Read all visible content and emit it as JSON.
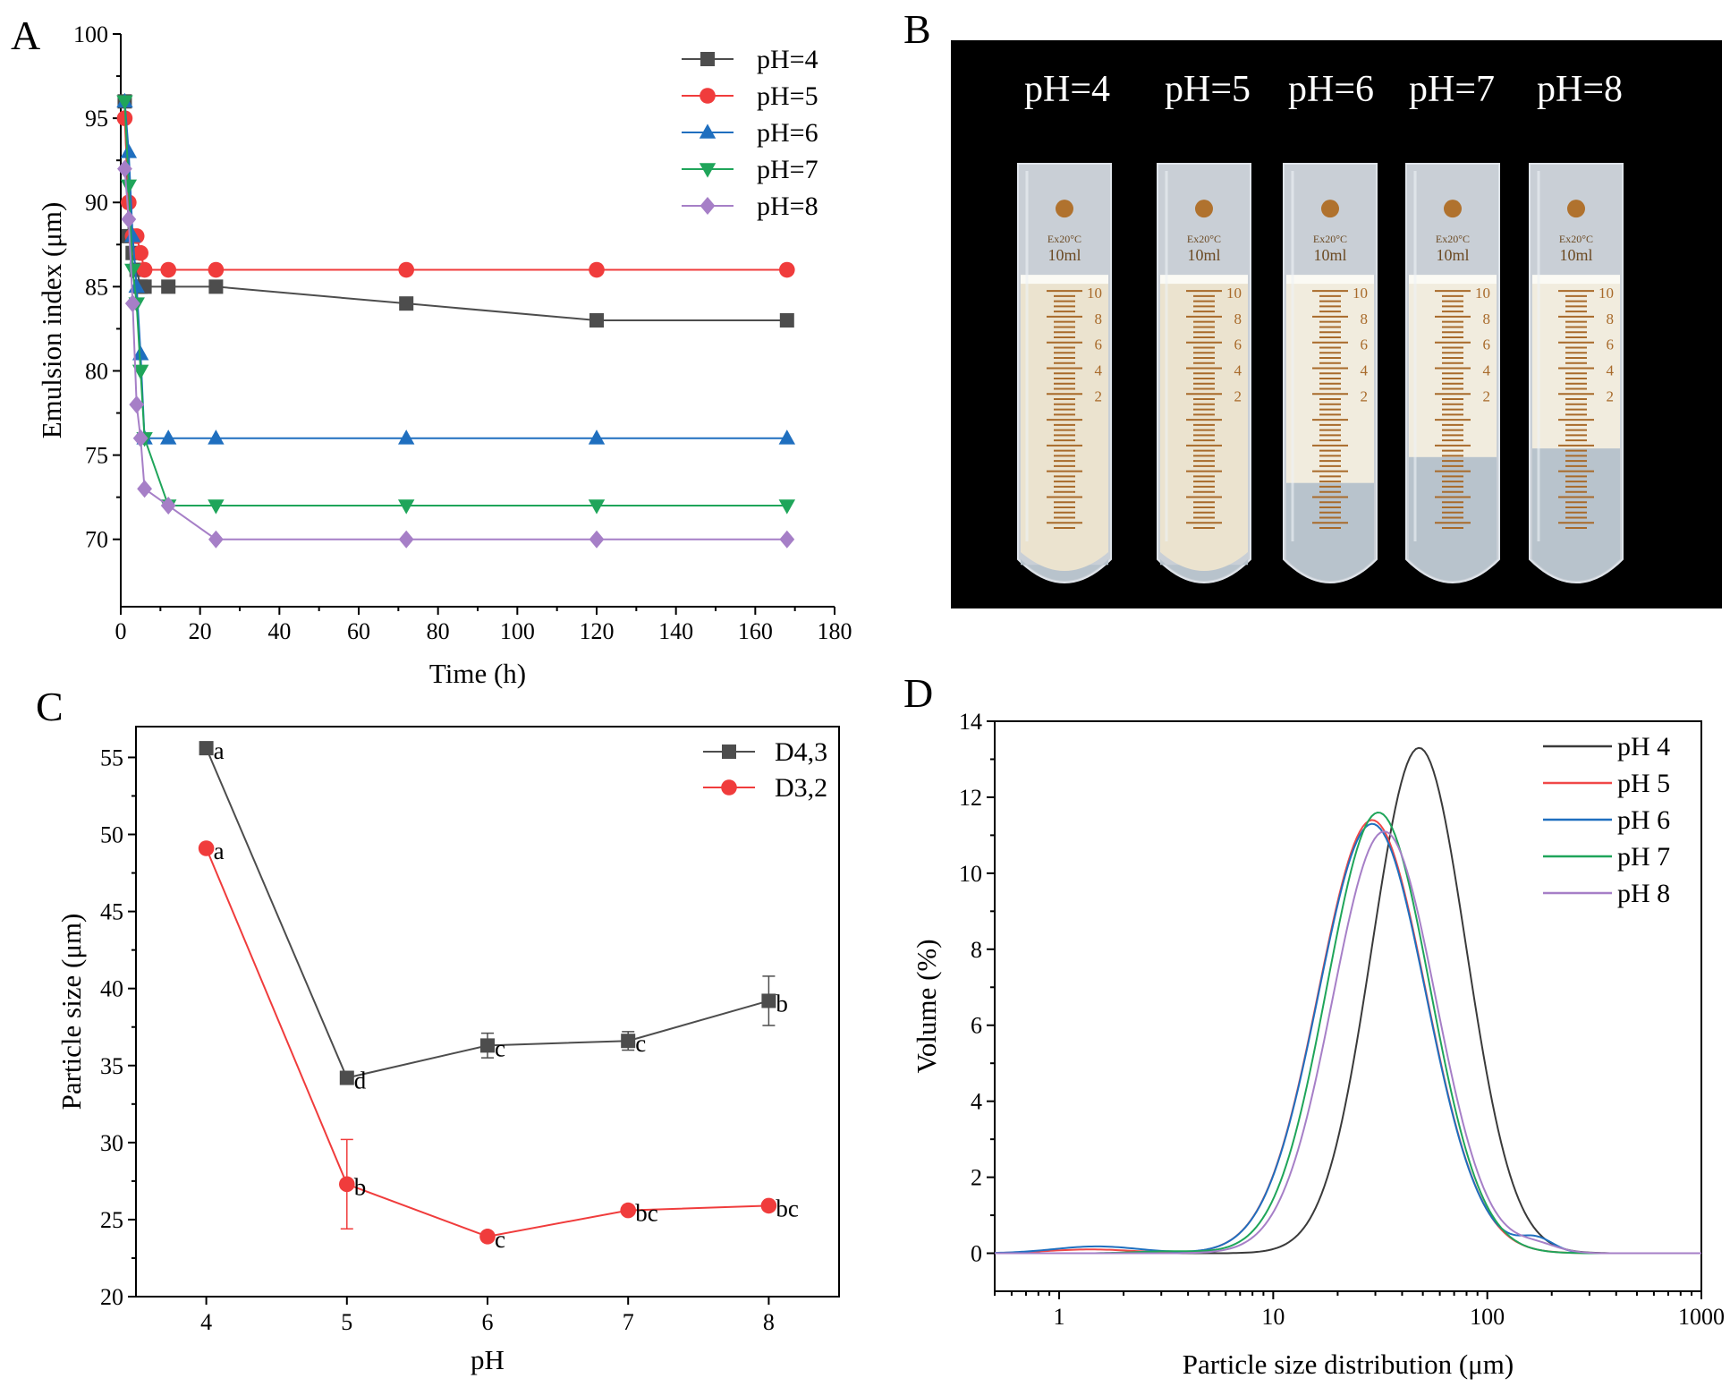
{
  "panels": {
    "A": "A",
    "B": "B",
    "C": "C",
    "D": "D"
  },
  "photo": {
    "background": "#000000",
    "labels": [
      "pH=4",
      "pH=5",
      "pH=6",
      "pH=7",
      "pH=8"
    ],
    "tube_volume_label": "10ml",
    "tube_temp_label": "Ex20°C",
    "scale_numbers": [
      "10",
      "8",
      "6",
      "4",
      "2"
    ],
    "emulsion_top_fraction": [
      0.27,
      0.27,
      0.27,
      0.27,
      0.27
    ],
    "emulsion_bottom_fraction": [
      0.93,
      0.93,
      0.74,
      0.68,
      0.66
    ]
  },
  "chart_data": [
    {
      "type": "line",
      "panel": "A",
      "xlabel": "Time (h)",
      "ylabel": "Emulsion index (μm)",
      "xlim": [
        0,
        180
      ],
      "ylim": [
        66,
        100
      ],
      "xticks": [
        0,
        20,
        40,
        60,
        80,
        100,
        120,
        140,
        160,
        180
      ],
      "yticks": [
        70,
        75,
        80,
        85,
        90,
        95,
        100
      ],
      "legend_position": "top-right",
      "series": [
        {
          "name": "pH=4",
          "color": "#4d4d4d",
          "marker": "square",
          "x": [
            1,
            2,
            3,
            4,
            5,
            6,
            12,
            24,
            72,
            120,
            168
          ],
          "y": [
            96,
            88,
            87,
            86,
            85,
            85,
            85,
            85,
            84,
            83,
            83
          ]
        },
        {
          "name": "pH=5",
          "color": "#f03c3c",
          "marker": "circle",
          "x": [
            1,
            2,
            3,
            4,
            5,
            6,
            12,
            24,
            72,
            120,
            168
          ],
          "y": [
            95,
            90,
            88,
            88,
            87,
            86,
            86,
            86,
            86,
            86,
            86
          ]
        },
        {
          "name": "pH=6",
          "color": "#1f6fbf",
          "marker": "triangle-up",
          "x": [
            1,
            2,
            3,
            4,
            5,
            6,
            12,
            24,
            72,
            120,
            168
          ],
          "y": [
            96,
            93,
            88,
            85,
            81,
            76,
            76,
            76,
            76,
            76,
            76
          ]
        },
        {
          "name": "pH=7",
          "color": "#1fa55a",
          "marker": "triangle-down",
          "x": [
            1,
            2,
            3,
            4,
            5,
            6,
            12,
            24,
            72,
            120,
            168
          ],
          "y": [
            96,
            91,
            86,
            84,
            80,
            76,
            72,
            72,
            72,
            72,
            72
          ]
        },
        {
          "name": "pH=8",
          "color": "#a67fc7",
          "marker": "diamond",
          "x": [
            1,
            2,
            3,
            4,
            5,
            6,
            12,
            24,
            72,
            120,
            168
          ],
          "y": [
            92,
            89,
            84,
            78,
            76,
            73,
            72,
            70,
            70,
            70,
            70
          ]
        }
      ]
    },
    {
      "type": "line",
      "panel": "C",
      "xlabel": "pH",
      "ylabel": "Particle size (μm)",
      "xlim": [
        3.5,
        8.5
      ],
      "ylim": [
        20,
        57
      ],
      "xticks": [
        4,
        5,
        6,
        7,
        8
      ],
      "yticks": [
        20,
        25,
        30,
        35,
        40,
        45,
        50,
        55
      ],
      "legend_position": "top-right",
      "series": [
        {
          "name": "D4,3",
          "color": "#4d4d4d",
          "marker": "square",
          "x": [
            4,
            5,
            6,
            7,
            8
          ],
          "y": [
            55.6,
            34.2,
            36.3,
            36.6,
            39.2
          ],
          "err": [
            0,
            0,
            0.8,
            0.6,
            1.6
          ],
          "letters": [
            "a",
            "d",
            "c",
            "c",
            "b"
          ]
        },
        {
          "name": "D3,2",
          "color": "#f03c3c",
          "marker": "circle",
          "x": [
            4,
            5,
            6,
            7,
            8
          ],
          "y": [
            49.1,
            27.3,
            23.9,
            25.6,
            25.9
          ],
          "err": [
            0,
            2.9,
            0,
            0,
            0
          ],
          "letters": [
            "a",
            "b",
            "c",
            "bc",
            "bc"
          ]
        }
      ]
    },
    {
      "type": "line",
      "panel": "D",
      "xlabel": "Particle size distribution (μm)",
      "ylabel": "Volume (%)",
      "xscale": "log",
      "xlim": [
        0.5,
        1000
      ],
      "ylim": [
        -1,
        14
      ],
      "xticks": [
        1,
        10,
        100,
        1000
      ],
      "xtick_labels": [
        "1",
        "10",
        "100",
        "1000"
      ],
      "yticks": [
        0,
        2,
        4,
        6,
        8,
        10,
        12,
        14
      ],
      "legend_position": "top-right",
      "series": [
        {
          "name": "pH 4",
          "color": "#3a3a3a",
          "peak": 48,
          "height": 13.3,
          "width": 0.22,
          "bumps": []
        },
        {
          "name": "pH 5",
          "color": "#f04848",
          "peak": 29,
          "height": 11.4,
          "width": 0.25,
          "bumps": [
            {
              "center": 1.4,
              "height": 0.1,
              "width": 0.2
            }
          ]
        },
        {
          "name": "pH 6",
          "color": "#1f6fbf",
          "peak": 29,
          "height": 11.3,
          "width": 0.25,
          "bumps": [
            {
              "center": 1.5,
              "height": 0.18,
              "width": 0.2
            },
            {
              "center": 170,
              "height": 0.35,
              "width": 0.08
            }
          ]
        },
        {
          "name": "pH 7",
          "color": "#1fa55a",
          "peak": 31,
          "height": 11.6,
          "width": 0.24,
          "bumps": [
            {
              "center": 3.2,
              "height": 0.05,
              "width": 0.15
            }
          ]
        },
        {
          "name": "pH 8",
          "color": "#a67fc7",
          "peak": 33,
          "height": 11.1,
          "width": 0.24,
          "bumps": [
            {
              "center": 170,
              "height": 0.2,
              "width": 0.1
            }
          ]
        }
      ]
    }
  ]
}
